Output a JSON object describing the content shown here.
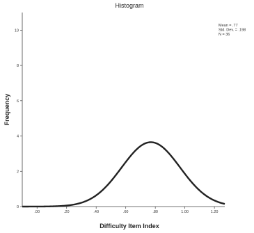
{
  "chart_data": {
    "type": "line",
    "title": "Histogram",
    "xlabel": "Difficulty Item Index",
    "ylabel": "Frequency",
    "xlim": [
      -0.1,
      1.27
    ],
    "ylim": [
      0,
      11
    ],
    "x_ticks": [
      0.0,
      0.2,
      0.4,
      0.6,
      0.8,
      1.0,
      1.2
    ],
    "x_tick_labels": [
      ".00",
      ".20",
      ".40",
      ".60",
      ".80",
      "1.00",
      "1.20"
    ],
    "y_ticks": [
      0,
      2,
      4,
      6,
      8,
      10
    ],
    "y_tick_labels": [
      "0",
      "2",
      "4",
      "6",
      "8",
      "10"
    ],
    "series": [
      {
        "curve": "normal",
        "mean": 0.77,
        "std_dev": 0.198,
        "n": 36,
        "peak_frequency": 3.65,
        "x": [
          -0.1,
          0.0,
          0.1,
          0.2,
          0.3,
          0.4,
          0.5,
          0.6,
          0.7,
          0.77,
          0.8,
          0.9,
          1.0,
          1.1,
          1.2,
          1.27
        ],
        "y": [
          0.0,
          0.02,
          0.05,
          0.06,
          0.22,
          0.6,
          1.3,
          2.5,
          3.4,
          3.65,
          3.6,
          2.9,
          1.9,
          0.9,
          0.4,
          0.15
        ]
      }
    ],
    "legend_placement": "top-right",
    "stats_text": [
      "Mean = .77",
      "Std. Dev. = .198",
      "N = 36"
    ],
    "grid": false,
    "line_color": "#222222"
  }
}
